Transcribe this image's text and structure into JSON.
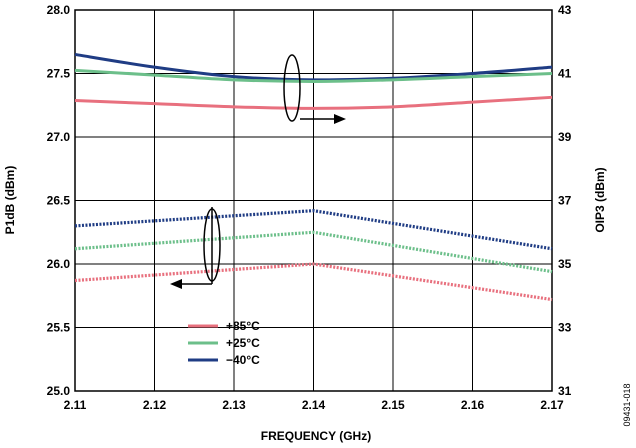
{
  "chart_data": {
    "type": "line",
    "title": "",
    "xlabel": "FREQUENCY (GHz)",
    "ylabel_left": "P1dB (dBm)",
    "ylabel_right": "OIP3 (dBm)",
    "xlim": [
      2.11,
      2.17
    ],
    "ylim_left": [
      25.0,
      28.0
    ],
    "ylim_right": [
      31,
      43
    ],
    "x_ticks": [
      "2.11",
      "2.12",
      "2.13",
      "2.14",
      "2.15",
      "2.16",
      "2.17"
    ],
    "y_left_ticks": [
      "25.0",
      "25.5",
      "26.0",
      "26.5",
      "27.0",
      "27.5",
      "28.0"
    ],
    "y_right_ticks": [
      "31",
      "33",
      "35",
      "37",
      "39",
      "41",
      "43"
    ],
    "grid": true,
    "legend_position": "bottom-left",
    "figure_id": "09431-018",
    "legend": [
      {
        "label": "+85°C",
        "color": "#e8707e"
      },
      {
        "label": "+25°C",
        "color": "#6cbf8a"
      },
      {
        "label": "−40°C",
        "color": "#1f3c84"
      }
    ],
    "series": [
      {
        "group": "OIP3",
        "axis": "right",
        "temperature": "−40°C",
        "color": "#1f3c84",
        "style": "solid",
        "x": [
          2.11,
          2.12,
          2.13,
          2.14,
          2.15,
          2.16,
          2.17
        ],
        "y": [
          41.6,
          41.2,
          40.9,
          40.8,
          40.85,
          41.0,
          41.2
        ]
      },
      {
        "group": "OIP3",
        "axis": "right",
        "temperature": "+25°C",
        "color": "#6cbf8a",
        "style": "solid",
        "x": [
          2.11,
          2.12,
          2.13,
          2.14,
          2.15,
          2.16,
          2.17
        ],
        "y": [
          41.1,
          40.95,
          40.8,
          40.75,
          40.8,
          40.9,
          41.0
        ]
      },
      {
        "group": "OIP3",
        "axis": "right",
        "temperature": "+85°C",
        "color": "#e8707e",
        "style": "solid",
        "x": [
          2.11,
          2.12,
          2.13,
          2.14,
          2.15,
          2.16,
          2.17
        ],
        "y": [
          40.15,
          40.05,
          39.95,
          39.9,
          39.95,
          40.1,
          40.25
        ]
      },
      {
        "group": "P1dB",
        "axis": "left",
        "temperature": "−40°C",
        "color": "#1f3c84",
        "style": "dotted",
        "x": [
          2.11,
          2.14,
          2.17
        ],
        "y": [
          26.3,
          26.42,
          26.12
        ]
      },
      {
        "group": "P1dB",
        "axis": "left",
        "temperature": "+25°C",
        "color": "#6cbf8a",
        "style": "dotted",
        "x": [
          2.11,
          2.14,
          2.17
        ],
        "y": [
          26.12,
          26.25,
          25.94
        ]
      },
      {
        "group": "P1dB",
        "axis": "left",
        "temperature": "+85°C",
        "color": "#e8707e",
        "style": "dotted",
        "x": [
          2.11,
          2.14,
          2.17
        ],
        "y": [
          25.87,
          26.0,
          25.72
        ]
      }
    ]
  }
}
